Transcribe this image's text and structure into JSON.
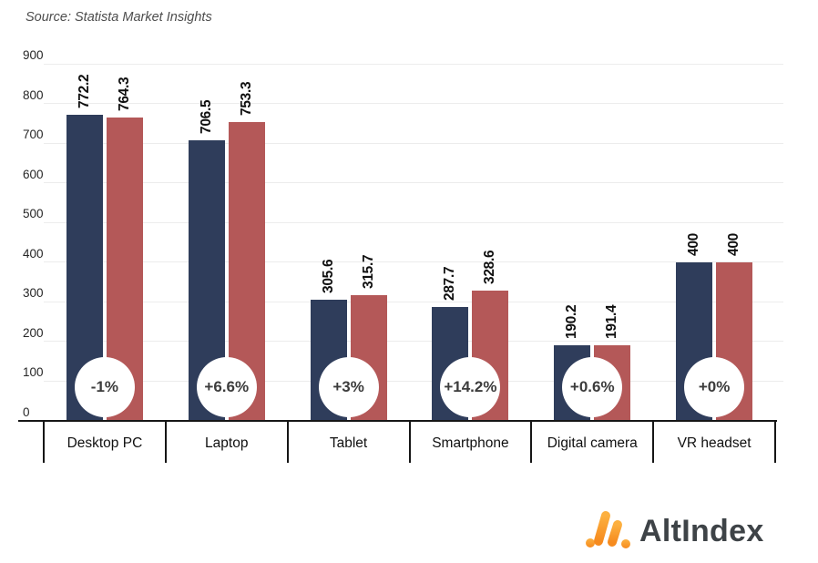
{
  "source_note": "Source: Statista Market Insights",
  "branding": {
    "logo_text": "AltIndex",
    "logo_icon": "altindex-slanted-bars-icon",
    "logo_icon_color_top": "#FCB040",
    "logo_icon_color_bottom": "#F68B1F",
    "logo_text_color": "#3e4347"
  },
  "chart_data": {
    "type": "bar",
    "title": "",
    "xlabel": "",
    "ylabel": "",
    "categories": [
      "Desktop PC",
      "Laptop",
      "Tablet",
      "Smartphone",
      "Digital camera",
      "VR headset"
    ],
    "series": [
      {
        "color": "#2F3D5B",
        "values": [
          772.2,
          706.5,
          305.6,
          287.7,
          190.2,
          400
        ]
      },
      {
        "color": "#B45858",
        "values": [
          764.3,
          753.3,
          315.7,
          328.6,
          191.4,
          400
        ]
      }
    ],
    "value_labels": [
      [
        "772.2",
        "706.5",
        "305.6",
        "287.7",
        "190.2",
        "400"
      ],
      [
        "764.3",
        "753.3",
        "315.7",
        "328.6",
        "191.4",
        "400"
      ]
    ],
    "change_badges": [
      "-1%",
      "+6.6%",
      "+3%",
      "+14.2%",
      "+0.6%",
      "+0%"
    ],
    "y_ticks": [
      "0",
      "100",
      "200",
      "300",
      "400",
      "500",
      "600",
      "700",
      "800",
      "900"
    ],
    "ylim": [
      0,
      900
    ],
    "grid": true,
    "legend": "none",
    "grid_color": "#ececec",
    "axis_color": "#161616",
    "badge_bg": "#ffffff"
  }
}
